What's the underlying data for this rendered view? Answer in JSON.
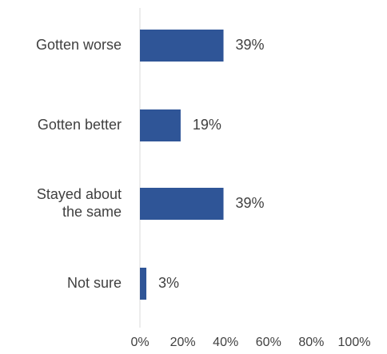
{
  "chart_data": {
    "type": "bar",
    "orientation": "horizontal",
    "categories": [
      [
        "Gotten worse"
      ],
      [
        "Gotten better"
      ],
      [
        "Stayed about",
        "the same"
      ],
      [
        "Not sure"
      ]
    ],
    "values": [
      39,
      19,
      39,
      3
    ],
    "data_labels": [
      "39%",
      "19%",
      "39%",
      "3%"
    ],
    "x_ticks": [
      "0%",
      "20%",
      "40%",
      "60%",
      "80%",
      "100%"
    ],
    "xlim": [
      0,
      100
    ],
    "title": "",
    "xlabel": "",
    "ylabel": "",
    "grid": false,
    "legend": "none",
    "bar_color": "#2F5597",
    "axis_color": "#D9D9D9"
  }
}
